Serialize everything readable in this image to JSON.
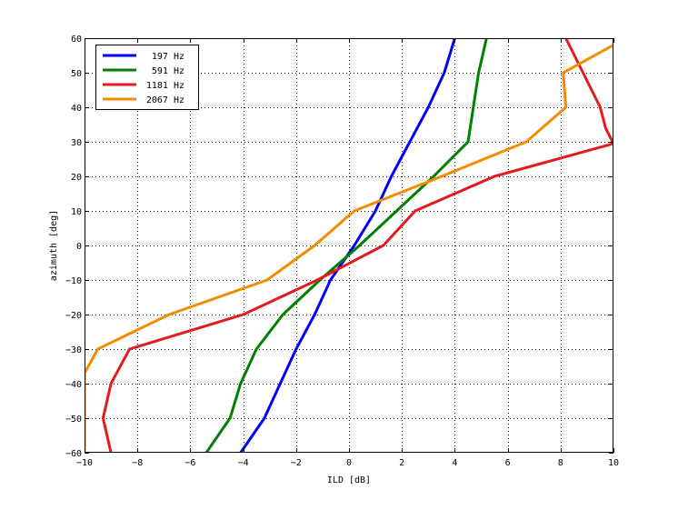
{
  "chart_data": {
    "type": "line",
    "title": "",
    "xlabel": "ILD [dB]",
    "ylabel": "azimuth [deg]",
    "xlim": [
      -10,
      10
    ],
    "ylim": [
      -60,
      60
    ],
    "xticks": [
      -10,
      -8,
      -6,
      -4,
      -2,
      0,
      2,
      4,
      6,
      8,
      10
    ],
    "yticks": [
      -60,
      -50,
      -40,
      -30,
      -20,
      -10,
      0,
      10,
      20,
      30,
      40,
      50,
      60
    ],
    "grid": true,
    "legend_position": "top-left",
    "series": [
      {
        "name": "197 Hz",
        "color": "#0000ff",
        "x": [
          -4.1,
          -3.2,
          -2.6,
          -2.0,
          -1.3,
          -0.7,
          0.2,
          1.0,
          1.6,
          2.3,
          3.0,
          3.6,
          4.0
        ],
        "y": [
          -60,
          -50,
          -40,
          -30,
          -20,
          -10,
          0,
          10,
          20,
          30,
          40,
          50,
          60
        ]
      },
      {
        "name": "591 Hz",
        "color": "#008000",
        "x": [
          -5.4,
          -4.5,
          -4.1,
          -3.5,
          -2.5,
          -1.1,
          0.4,
          1.8,
          3.2,
          4.5,
          4.7,
          4.9,
          5.2
        ],
        "y": [
          -60,
          -50,
          -40,
          -30,
          -20,
          -10,
          0,
          10,
          20,
          30,
          40,
          50,
          60
        ]
      },
      {
        "name": "1181 Hz",
        "color": "#e41a1c",
        "x": [
          -9.0,
          -9.3,
          -9.0,
          -8.3,
          -4.0,
          -1.2,
          1.3,
          2.5,
          5.5,
          10.0,
          9.7,
          9.5,
          8.2
        ],
        "y": [
          -60,
          -50,
          -40,
          -30,
          -20,
          -10,
          0,
          10,
          20,
          29.5,
          34,
          40,
          60
        ]
      },
      {
        "name": "2067 Hz",
        "color": "#f28c00",
        "x": [
          -10.0,
          -10.0,
          -10.0,
          -9.5,
          -6.8,
          -3.1,
          -1.3,
          0.2,
          3.5,
          6.7,
          8.2,
          8.1,
          10.0
        ],
        "y": [
          -60,
          -50,
          -37,
          -30,
          -20,
          -10,
          0,
          10,
          20,
          30,
          40,
          50,
          58
        ]
      }
    ]
  }
}
